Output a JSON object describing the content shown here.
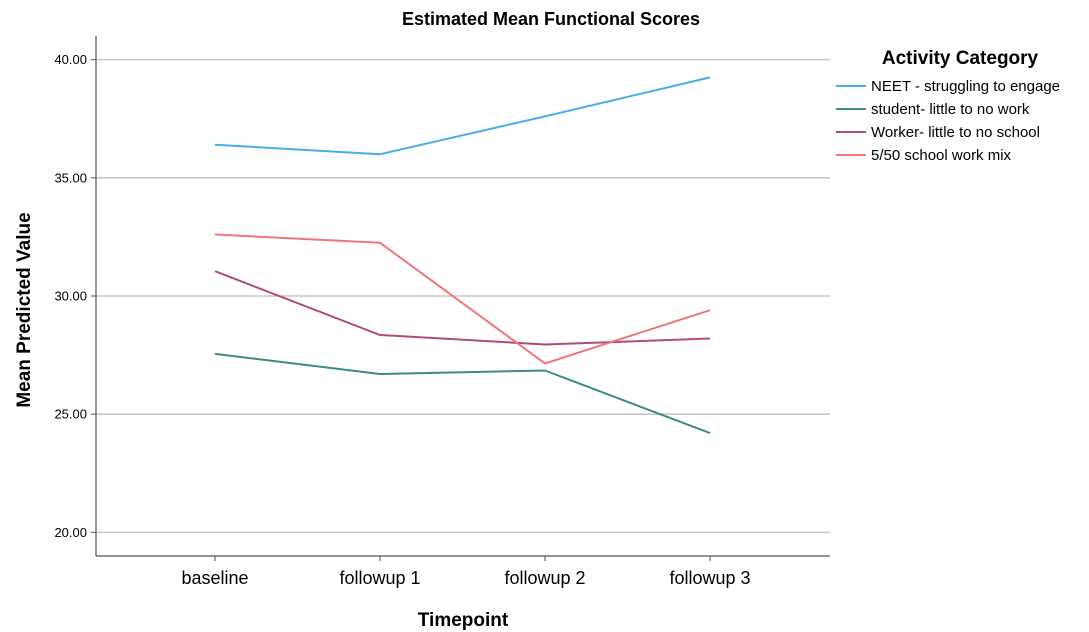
{
  "chart_data": {
    "type": "line",
    "title": "Estimated Mean Functional Scores",
    "xlabel": "Timepoint",
    "ylabel": "Mean Predicted Value",
    "categories": [
      "baseline",
      "followup 1",
      "followup 2",
      "followup 3"
    ],
    "ylim": [
      19.0,
      41.0
    ],
    "yticks": [
      "20.00",
      "25.00",
      "30.00",
      "35.00",
      "40.00"
    ],
    "ytick_values": [
      20,
      25,
      30,
      35,
      40
    ],
    "grid": true,
    "legend_title": "Activity Category",
    "legend_position": "top-right",
    "series": [
      {
        "name": "NEET - struggling to engage",
        "color": "#4aaee6",
        "values": [
          36.4,
          36.0,
          37.6,
          39.25
        ]
      },
      {
        "name": "student- little to no work",
        "color": "#3b8c84",
        "values": [
          27.55,
          26.7,
          26.85,
          24.2
        ]
      },
      {
        "name": "Worker- little to no school",
        "color": "#b04a7a",
        "values": [
          31.05,
          28.35,
          27.95,
          28.2
        ]
      },
      {
        "name": "5/50 school work mix",
        "color": "#f07678",
        "values": [
          32.6,
          32.25,
          27.15,
          29.4
        ]
      }
    ]
  }
}
